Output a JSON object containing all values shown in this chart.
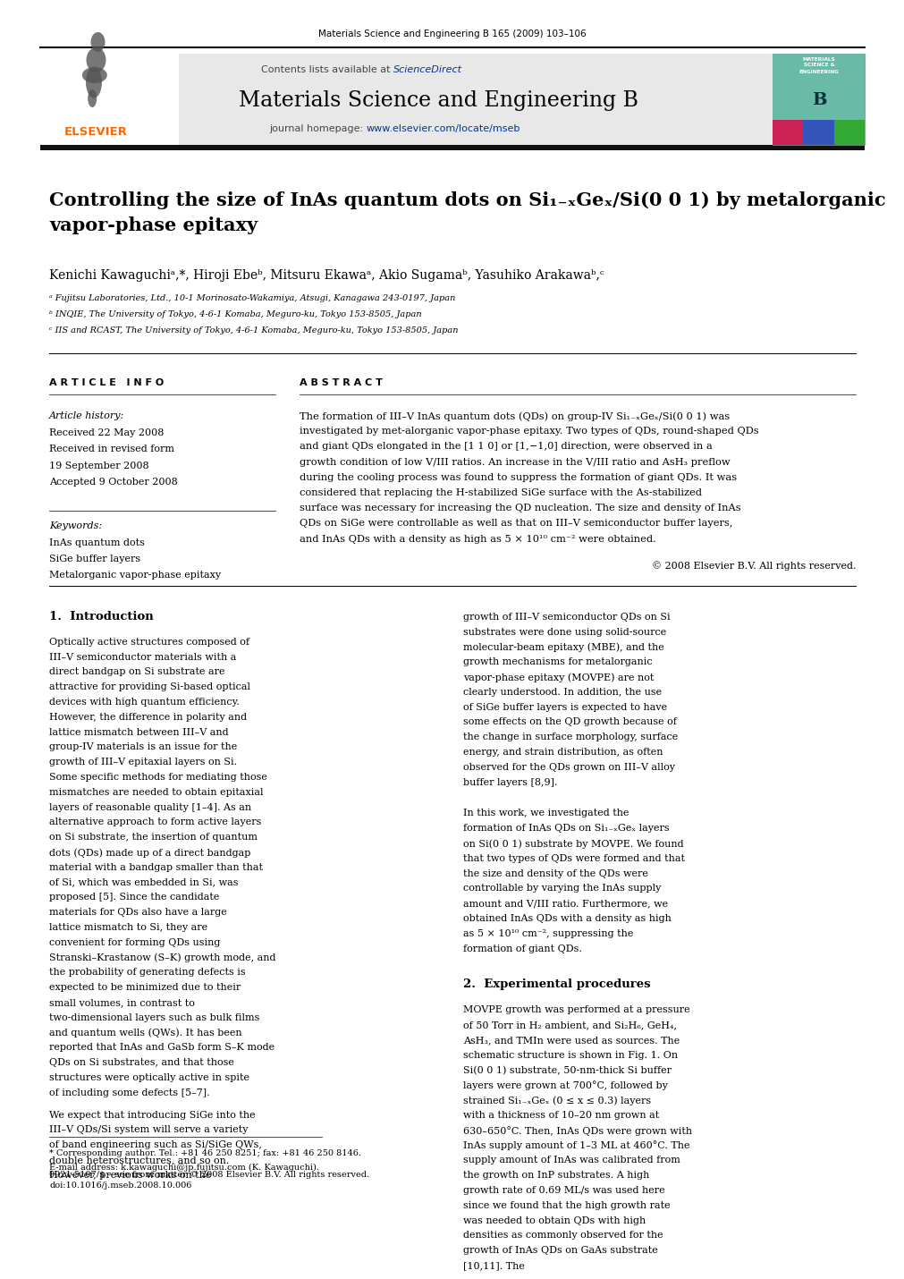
{
  "page_width": 9.92,
  "page_height": 13.23,
  "bg_color": "#ffffff",
  "journal_line": "Materials Science and Engineering B 165 (2009) 103–106",
  "journal_name": "Materials Science and Engineering B",
  "contents_line": "Contents lists available at ScienceDirect",
  "journal_homepage": "journal homepage: www.elsevier.com/locate/mseb",
  "sciencedirect_color": "#003399",
  "homepage_color": "#003399",
  "elsevier_color": "#FF6600",
  "header_bg": "#e8e8e8",
  "title": "Controlling the size of InAs quantum dots on Si₁₋ₓGeₓ/Si(0 0 1) by metalorganic\nvapor-phase epitaxy",
  "affil1": "ᵃ Fujitsu Laboratories, Ltd., 10-1 Morinosato-Wakamiya, Atsugi, Kanagawa 243-0197, Japan",
  "affil2": "ᵇ INQIE, The University of Tokyo, 4-6-1 Komaba, Meguro-ku, Tokyo 153-8505, Japan",
  "affil3": "ᶜ IIS and RCAST, The University of Tokyo, 4-6-1 Komaba, Meguro-ku, Tokyo 153-8505, Japan",
  "article_info_header": "A R T I C L E   I N F O",
  "abstract_header": "A B S T R A C T",
  "article_history_label": "Article history:",
  "received": "Received 22 May 2008",
  "received_revised": "Received in revised form",
  "revised_date": "19 September 2008",
  "accepted": "Accepted 9 October 2008",
  "keywords_label": "Keywords:",
  "keyword1": "InAs quantum dots",
  "keyword2": "SiGe buffer layers",
  "keyword3": "Metalorganic vapor-phase epitaxy",
  "abstract_text": "The formation of III–V InAs quantum dots (QDs) on group-IV Si₁₋ₓGeₓ/Si(0 0 1) was investigated by met-alorganic vapor-phase epitaxy. Two types of QDs, round-shaped QDs and giant QDs elongated in the [1 1 0] or [1,−1,0] direction, were observed in a growth condition of low V/III ratios. An increase in the V/III ratio and AsH₃ preflow during the cooling process was found to suppress the formation of giant QDs. It was considered that replacing the H-stabilized SiGe surface with the As-stabilized surface was necessary for increasing the QD nucleation. The size and density of InAs QDs on SiGe were controllable as well as that on III–V semiconductor buffer layers, and InAs QDs with a density as high as 5 × 10¹⁰ cm⁻² were obtained.",
  "copyright": "© 2008 Elsevier B.V. All rights reserved.",
  "section1_title": "1.  Introduction",
  "intro_text1": "Optically active structures composed of III–V semiconductor materials with a direct bandgap on Si substrate are attractive for providing Si-based optical devices with high quantum efficiency. However, the difference in polarity and lattice mismatch between III–V and group-IV materials is an issue for the growth of III–V epitaxial layers on Si. Some specific methods for mediating those mismatches are needed to obtain epitaxial layers of reasonable quality [1–4]. As an alternative approach to form active layers on Si substrate, the insertion of quantum dots (QDs) made up of a direct bandgap material with a bandgap smaller than that of Si, which was embedded in Si, was proposed [5]. Since the candidate materials for QDs also have a large lattice mismatch to Si, they are convenient for forming QDs using Stranski–Krastanow (S–K) growth mode, and the probability of generating defects is expected to be minimized due to their small volumes, in contrast to two-dimensional layers such as bulk films and quantum wells (QWs). It has been reported that InAs and GaSb form S–K mode QDs on Si substrates, and that those structures were optically active in spite of including some defects [5–7].",
  "intro_text2": "We expect that introducing SiGe into the III–V QDs/Si system will serve a variety of band engineering such as Si/SiGe QWs, double heterostructures, and so on. However, previous works on the",
  "right_col_text": "growth of III–V semiconductor QDs on Si substrates were done using solid-source molecular-beam epitaxy (MBE), and the growth mechanisms for metalorganic vapor-phase epitaxy (MOVPE) are not clearly understood. In addition, the use of SiGe buffer layers is expected to have some effects on the QD growth because of the change in surface morphology, surface energy, and strain distribution, as often observed for the QDs grown on III–V alloy buffer layers [8,9].",
  "right_col_text2": "In this work, we investigated the formation of InAs QDs on Si₁₋ₓGeₓ layers on Si(0 0 1) substrate by MOVPE. We found that two types of QDs were formed and that the size and density of the QDs were controllable by varying the InAs supply amount and V/III ratio. Furthermore, we obtained InAs QDs with a density as high as 5 × 10¹⁰ cm⁻², suppressing the formation of giant QDs.",
  "section2_title": "2.  Experimental procedures",
  "exp_text": "MOVPE growth was performed at a pressure of 50 Torr in H₂ ambient, and Si₂H₆, GeH₄, AsH₃, and TMIn were used as sources. The schematic structure is shown in Fig. 1. On Si(0 0 1) substrate, 50-nm-thick Si buffer layers were grown at 700°C, followed by strained Si₁₋ₓGeₓ (0 ≤ x ≤ 0.3) layers with a thickness of 10–20 nm grown at 630–650°C. Then, InAs QDs were grown with InAs supply amount of 1–3 ML at 460°C. The supply amount of InAs was calibrated from the growth on InP substrates. A high growth rate of 0.69 ML/s was used here since we found that the high growth rate was needed to obtain QDs with high densities as commonly observed for the growth of InAs QDs on GaAs substrate [10,11]. The",
  "footnote_star": "* Corresponding author. Tel.: +81 46 250 8251; fax: +81 46 250 8146.",
  "footnote_email": "E-mail address: k.kawaguchi@jp.fujitsu.com (K. Kawaguchi).",
  "issn_line": "0921-5107/$ – see front matter © 2008 Elsevier B.V. All rights reserved.",
  "doi_line": "doi:10.1016/j.mseb.2008.10.006"
}
